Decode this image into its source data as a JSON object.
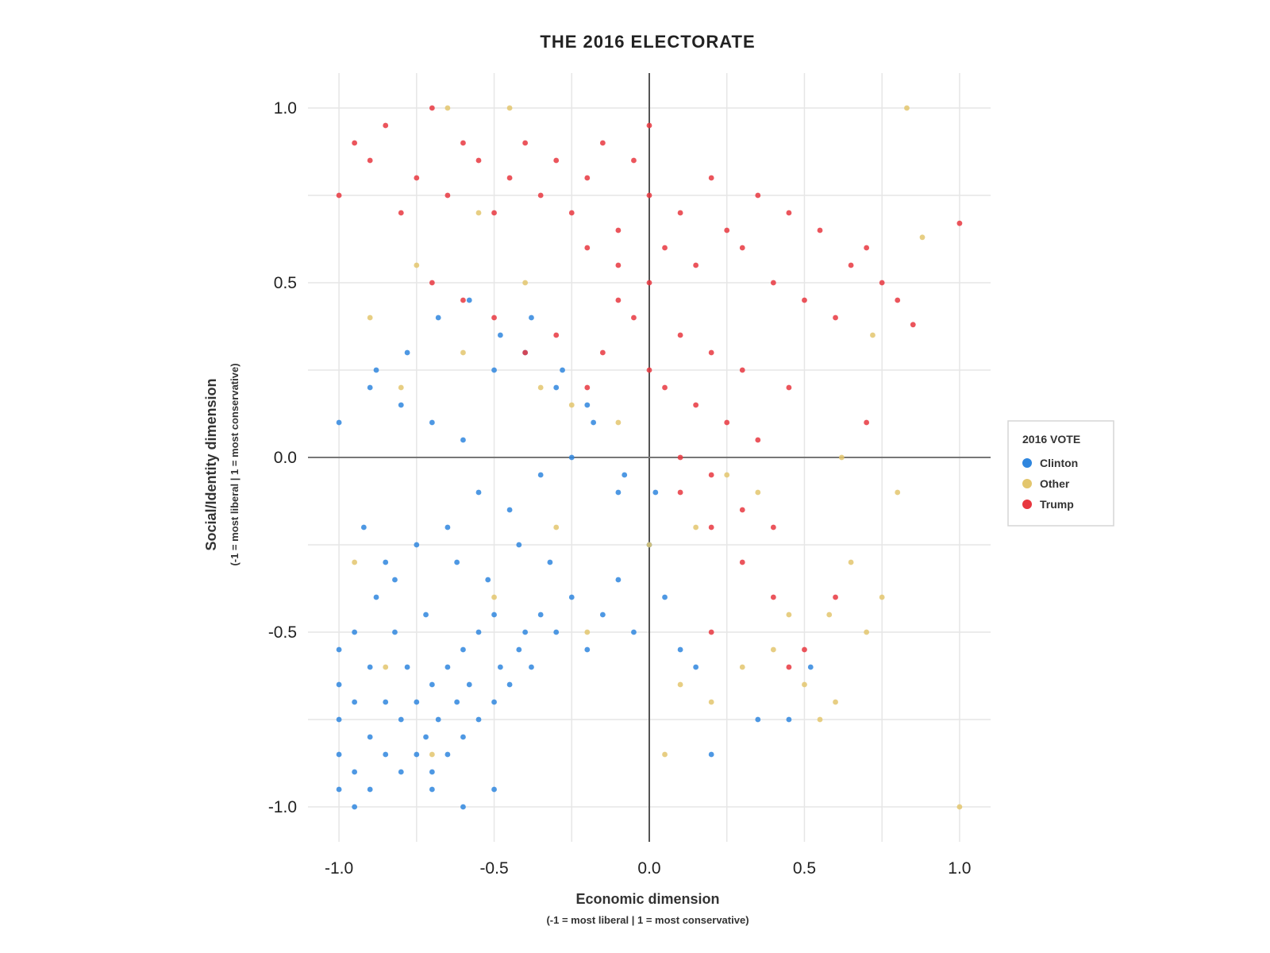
{
  "chart_data": {
    "type": "scatter",
    "title": "THE 2016 ELECTORATE",
    "xlabel": "Economic dimension",
    "xlabel_sub": "(-1 = most liberal | 1 = most conservative)",
    "ylabel": "Social/Identity dimension",
    "ylabel_sub": "(-1 = most liberal | 1 = most conservative)",
    "xlim": [
      -1.1,
      1.1
    ],
    "ylim": [
      -1.1,
      1.1
    ],
    "xticks": [
      -1.0,
      -0.5,
      0.0,
      0.5,
      1.0
    ],
    "xtick_labels": [
      "-1.0",
      "-0.5",
      "0.0",
      "0.5",
      "1.0"
    ],
    "yticks": [
      1.0,
      0.5,
      0.0,
      -0.5,
      -1.0
    ],
    "ytick_labels": [
      "1.0",
      "0.5",
      "0.0",
      "-0.5",
      "-1.0"
    ],
    "grid": true,
    "legend": {
      "title": "2016 VOTE",
      "placement": "right"
    },
    "series": [
      {
        "name": "Clinton",
        "color": "#2f86de",
        "x": [
          -1.0,
          -1.0,
          -1.0,
          -1.0,
          -1.0,
          -1.0,
          -0.95,
          -0.95,
          -0.95,
          -0.9,
          -0.9,
          -0.9,
          -0.88,
          -0.85,
          -0.85,
          -0.82,
          -0.8,
          -0.8,
          -0.78,
          -0.75,
          -0.75,
          -0.72,
          -0.7,
          -0.7,
          -0.68,
          -0.65,
          -0.65,
          -0.62,
          -0.6,
          -0.6,
          -0.58,
          -0.55,
          -0.55,
          -0.5,
          -0.5,
          -0.48,
          -0.45,
          -0.42,
          -0.4,
          -0.38,
          -0.35,
          -0.3,
          -0.25,
          -0.2,
          -0.15,
          -0.1,
          -0.05,
          0.0,
          0.05,
          0.1,
          0.15,
          0.2,
          -0.85,
          -0.75,
          -0.65,
          -0.55,
          -0.45,
          -0.35,
          -0.25,
          -0.9,
          -0.8,
          -0.7,
          -0.6,
          -0.5,
          -0.4,
          -0.3,
          -0.2,
          -0.1,
          -0.92,
          -0.82,
          -0.72,
          -0.62,
          -0.52,
          -0.42,
          -0.32,
          0.35,
          0.45,
          0.52,
          -0.95,
          -0.88,
          -0.78,
          -0.68,
          -0.58,
          -0.48,
          -0.38,
          -0.28,
          -0.18,
          -0.08,
          0.02,
          -0.7,
          -0.6,
          -0.5
        ],
        "y": [
          -0.95,
          -0.85,
          -0.75,
          -0.65,
          -0.55,
          0.1,
          -0.9,
          -0.7,
          -0.5,
          -0.95,
          -0.8,
          -0.6,
          -0.4,
          -0.85,
          -0.7,
          -0.5,
          -0.9,
          -0.75,
          -0.6,
          -0.85,
          -0.7,
          -0.8,
          -0.9,
          -0.65,
          -0.75,
          -0.85,
          -0.6,
          -0.7,
          -0.8,
          -0.55,
          -0.65,
          -0.75,
          -0.5,
          -0.7,
          -0.45,
          -0.6,
          -0.65,
          -0.55,
          -0.5,
          -0.6,
          -0.45,
          -0.5,
          -0.4,
          -0.55,
          -0.45,
          -0.35,
          -0.5,
          -0.25,
          -0.4,
          -0.55,
          -0.6,
          -0.85,
          -0.3,
          -0.25,
          -0.2,
          -0.1,
          -0.15,
          -0.05,
          0.0,
          0.2,
          0.15,
          0.1,
          0.05,
          0.25,
          0.3,
          0.2,
          0.15,
          -0.1,
          -0.2,
          -0.35,
          -0.45,
          -0.3,
          -0.35,
          -0.25,
          -0.3,
          -0.75,
          -0.75,
          -0.6,
          -1.0,
          0.25,
          0.3,
          0.4,
          0.45,
          0.35,
          0.4,
          0.25,
          0.1,
          -0.05,
          -0.1,
          -0.95,
          -1.0,
          -0.95
        ]
      },
      {
        "name": "Other",
        "color": "#e3c66d",
        "x": [
          -0.95,
          -0.9,
          -0.85,
          -0.8,
          -0.7,
          -0.6,
          -0.5,
          -0.45,
          -0.4,
          -0.3,
          -0.2,
          -0.1,
          0.0,
          0.1,
          0.2,
          0.3,
          0.35,
          0.4,
          0.45,
          0.5,
          0.55,
          0.6,
          0.65,
          0.7,
          0.75,
          0.8,
          1.0,
          0.83,
          -0.65,
          -0.55,
          -0.35,
          0.25,
          0.15,
          -0.75,
          -0.25,
          0.05,
          0.58,
          0.62,
          0.72,
          0.88
        ],
        "y": [
          -0.3,
          0.4,
          -0.6,
          0.2,
          -0.85,
          0.3,
          -0.4,
          1.0,
          0.5,
          -0.2,
          -0.5,
          0.1,
          -0.25,
          -0.65,
          -0.7,
          -0.6,
          -0.1,
          -0.55,
          -0.45,
          -0.65,
          -0.75,
          -0.7,
          -0.3,
          -0.5,
          -0.4,
          -0.1,
          -1.0,
          1.0,
          1.0,
          0.7,
          0.2,
          -0.05,
          -0.2,
          0.55,
          0.15,
          -0.85,
          -0.45,
          0.0,
          0.35,
          0.63
        ]
      },
      {
        "name": "Trump",
        "color": "#e8373f",
        "x": [
          -1.0,
          -0.95,
          -0.9,
          -0.85,
          -0.8,
          -0.75,
          -0.7,
          -0.65,
          -0.6,
          -0.55,
          -0.5,
          -0.45,
          -0.4,
          -0.35,
          -0.3,
          -0.25,
          -0.2,
          -0.15,
          -0.1,
          -0.05,
          0.0,
          0.05,
          0.1,
          0.15,
          0.2,
          0.25,
          0.3,
          0.35,
          0.4,
          0.45,
          0.5,
          0.55,
          0.6,
          0.65,
          0.7,
          0.75,
          0.8,
          0.85,
          1.0,
          -0.1,
          0.0,
          0.1,
          0.2,
          0.3,
          0.05,
          0.15,
          -0.05,
          0.25,
          0.35,
          -0.15,
          -0.2,
          0.1,
          0.2,
          0.45,
          0.3,
          0.4,
          0.2,
          -0.7,
          -0.6,
          -0.5,
          -0.4,
          -0.3,
          0.0,
          0.1,
          0.2,
          0.3,
          0.45,
          -0.1,
          0.0,
          -0.2,
          0.4,
          0.5,
          0.6,
          0.7
        ],
        "y": [
          0.75,
          0.9,
          0.85,
          0.95,
          0.7,
          0.8,
          1.0,
          0.75,
          0.9,
          0.85,
          0.7,
          0.8,
          0.9,
          0.75,
          0.85,
          0.7,
          0.8,
          0.9,
          0.65,
          0.85,
          0.75,
          0.6,
          0.7,
          0.55,
          0.8,
          0.65,
          0.6,
          0.75,
          0.5,
          0.7,
          0.45,
          0.65,
          0.4,
          0.55,
          0.6,
          0.5,
          0.45,
          0.38,
          0.67,
          0.45,
          0.5,
          0.35,
          0.3,
          0.25,
          0.2,
          0.15,
          0.4,
          0.1,
          0.05,
          0.3,
          0.2,
          -0.1,
          -0.2,
          0.2,
          -0.3,
          -0.4,
          -0.5,
          0.5,
          0.45,
          0.4,
          0.3,
          0.35,
          0.25,
          0.0,
          -0.05,
          -0.15,
          -0.6,
          0.55,
          0.95,
          0.6,
          -0.2,
          -0.55,
          -0.4,
          0.1
        ]
      }
    ]
  }
}
